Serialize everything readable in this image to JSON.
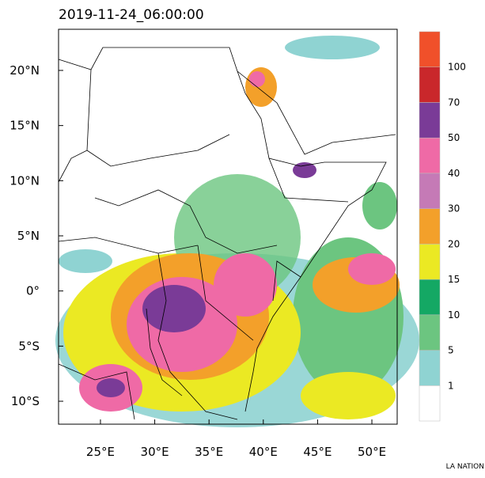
{
  "map": {
    "title": "2019-11-24_06:00:00",
    "lonlim": [
      21.14,
      52.33
    ],
    "latlim": [
      -12.08,
      23.73
    ],
    "lon_ticks": [
      {
        "value": 25,
        "label": "25°E"
      },
      {
        "value": 30,
        "label": "30°E"
      },
      {
        "value": 35,
        "label": "35°E"
      },
      {
        "value": 40,
        "label": "40°E"
      },
      {
        "value": 45,
        "label": "45°E"
      },
      {
        "value": 50,
        "label": "50°E"
      }
    ],
    "lat_ticks": [
      {
        "value": 20,
        "label": "20°N"
      },
      {
        "value": 15,
        "label": "15°N"
      },
      {
        "value": 10,
        "label": "10°N"
      },
      {
        "value": 5,
        "label": "5°N"
      },
      {
        "value": 0,
        "label": "0°"
      },
      {
        "value": -5,
        "label": "5°S"
      },
      {
        "value": -10,
        "label": "10°S"
      }
    ],
    "colorbar": {
      "levels": [
        1,
        5,
        10,
        15,
        20,
        30,
        40,
        50,
        70,
        100
      ],
      "colors": [
        "#ffffff",
        "#8fd3d2",
        "#6cc580",
        "#14a864",
        "#ebe923",
        "#f3a02a",
        "#c57ab6",
        "#ef6aa6",
        "#7a3b97",
        "#c9272b",
        "#f0502a"
      ]
    }
  },
  "footer": "LA NATION"
}
